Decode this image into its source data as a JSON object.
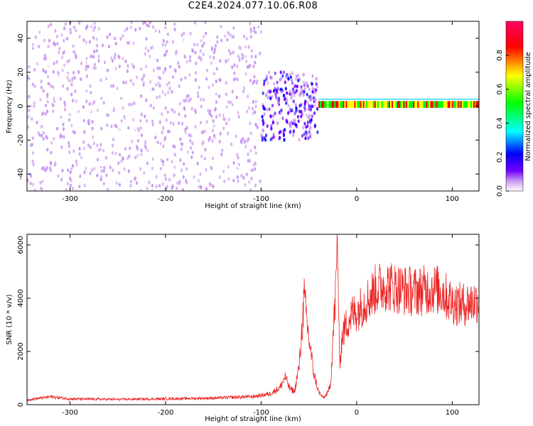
{
  "title": "C2E4.2024.077.10.06.R08",
  "chart_data": [
    {
      "type": "heatmap",
      "title": "C2E4.2024.077.10.06.R08",
      "xlabel": "Height of straight line (km)",
      "ylabel": "Frequency (Hz)",
      "xlim": [
        -345,
        128
      ],
      "ylim": [
        -50,
        50
      ],
      "xticks": [
        -300,
        -200,
        -100,
        0,
        100
      ],
      "yticks": [
        -40,
        -20,
        0,
        20,
        40
      ],
      "colorbar": {
        "label": "Normalized spectral amplitude",
        "range": [
          0.0,
          1.0
        ],
        "ticks": [
          0.0,
          0.2,
          0.4,
          0.6,
          0.8
        ],
        "colormap": [
          "#ffffff",
          "#c896f0",
          "#6e00ff",
          "#0000ff",
          "#00ffff",
          "#00ff00",
          "#ffff00",
          "#ff0000",
          "#ff0066"
        ]
      },
      "regions": [
        {
          "x_range": [
            -345,
            -100
          ],
          "freq_range": [
            -50,
            50
          ],
          "amplitude": 0.1
        },
        {
          "x_range": [
            -100,
            -40
          ],
          "freq_range": [
            -20,
            20
          ],
          "amplitude": 0.25
        },
        {
          "x_range": [
            -40,
            128
          ],
          "freq_center": 1,
          "amplitude": 0.85
        }
      ]
    },
    {
      "type": "line",
      "xlabel": "Height of straight line (km)",
      "ylabel": "SNR (10 * v/v)",
      "xlim": [
        -345,
        128
      ],
      "ylim": [
        0,
        6400
      ],
      "xticks": [
        -300,
        -200,
        -100,
        0,
        100
      ],
      "yticks": [
        0,
        2000,
        4000,
        6000
      ],
      "line_color": "#ee2222",
      "series": [
        {
          "x": [
            -345,
            -320,
            -300,
            -250,
            -200,
            -150,
            -110,
            -100,
            -90,
            -80,
            -75,
            -70,
            -65,
            -60,
            -55,
            -50,
            -45,
            -40,
            -35,
            -30,
            -27,
            -25,
            -22,
            -20,
            -18,
            -15,
            -10,
            -5,
            0,
            5,
            10,
            15,
            20,
            30,
            40,
            50,
            60,
            70,
            80,
            90,
            95,
            100,
            105,
            110,
            115,
            120,
            128
          ],
          "y": [
            180,
            300,
            220,
            200,
            220,
            250,
            300,
            350,
            420,
            650,
            1050,
            600,
            500,
            1500,
            4000,
            2500,
            1200,
            500,
            250,
            450,
            900,
            2400,
            4200,
            6300,
            1500,
            2600,
            3100,
            3400,
            3500,
            3700,
            3900,
            4100,
            4350,
            4500,
            4400,
            4300,
            4250,
            4300,
            4350,
            4250,
            4000,
            3850,
            3800,
            3750,
            3800,
            3850,
            3900
          ]
        }
      ]
    }
  ]
}
